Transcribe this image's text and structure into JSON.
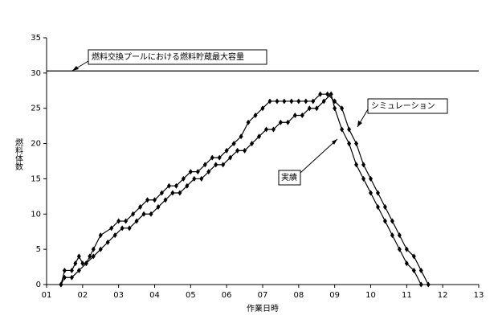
{
  "chart_data": {
    "type": "line",
    "x_label": "作業日時",
    "y_label": "燃料体数",
    "xlim": [
      1,
      13
    ],
    "xticks": [
      {
        "value": 1,
        "label": "01"
      },
      {
        "value": 2,
        "label": "02"
      },
      {
        "value": 3,
        "label": "03"
      },
      {
        "value": 4,
        "label": "04"
      },
      {
        "value": 5,
        "label": "05"
      },
      {
        "value": 6,
        "label": "06"
      },
      {
        "value": 7,
        "label": "07"
      },
      {
        "value": 8,
        "label": "08"
      },
      {
        "value": 9,
        "label": "09"
      },
      {
        "value": 10,
        "label": "10"
      },
      {
        "value": 11,
        "label": "11"
      },
      {
        "value": 12,
        "label": "12"
      },
      {
        "value": 13,
        "label": "13"
      }
    ],
    "ylim": [
      0,
      35
    ],
    "yticks": [
      0,
      5,
      10,
      15,
      20,
      25,
      30,
      35
    ],
    "reference_line": {
      "value": 30.3,
      "label": "燃料交換プールにおける燃料貯蔵最大容量",
      "color": "#000000"
    },
    "series": [
      {
        "name": "シミュレーション",
        "color": "#000000",
        "x": [
          1.4,
          1.5,
          1.7,
          1.8,
          1.9,
          2.0,
          2.1,
          2.2,
          2.3,
          2.5,
          2.8,
          3.0,
          3.2,
          3.4,
          3.6,
          3.8,
          4.0,
          4.2,
          4.4,
          4.6,
          4.8,
          5.0,
          5.2,
          5.4,
          5.6,
          5.8,
          6.0,
          6.2,
          6.4,
          6.6,
          6.8,
          7.0,
          7.2,
          7.4,
          7.6,
          7.8,
          8.0,
          8.2,
          8.4,
          8.6,
          8.8,
          9.0,
          9.2,
          9.4,
          9.6,
          9.8,
          10.0,
          10.2,
          10.4,
          10.6,
          10.8,
          11.0,
          11.2,
          11.4,
          11.6
        ],
        "values": [
          0,
          2,
          2,
          3,
          4,
          3,
          3,
          4,
          5,
          7,
          8,
          9,
          9,
          10,
          11,
          12,
          12,
          13,
          14,
          14,
          15,
          16,
          16,
          17,
          18,
          18,
          19,
          20,
          21,
          23,
          24,
          25,
          26,
          26,
          26,
          26,
          26,
          26,
          26,
          27,
          27,
          26,
          25,
          22,
          20,
          17,
          15,
          13,
          11,
          9,
          7,
          5,
          4,
          2,
          0
        ]
      },
      {
        "name": "実績",
        "color": "#000000",
        "x": [
          1.4,
          1.5,
          1.7,
          1.9,
          2.1,
          2.3,
          2.5,
          2.7,
          2.9,
          3.1,
          3.3,
          3.5,
          3.7,
          3.9,
          4.1,
          4.3,
          4.5,
          4.7,
          4.9,
          5.1,
          5.3,
          5.5,
          5.7,
          5.9,
          6.1,
          6.3,
          6.5,
          6.7,
          6.9,
          7.1,
          7.3,
          7.5,
          7.7,
          7.9,
          8.1,
          8.3,
          8.5,
          8.7,
          8.9,
          9.0,
          9.2,
          9.4,
          9.6,
          9.8,
          10.0,
          10.2,
          10.4,
          10.6,
          10.8,
          11.0,
          11.2,
          11.4
        ],
        "values": [
          0,
          1,
          1,
          2,
          3,
          4,
          5,
          6,
          7,
          8,
          8,
          9,
          10,
          10,
          11,
          12,
          13,
          13,
          14,
          15,
          15,
          16,
          17,
          17,
          18,
          19,
          19,
          20,
          21,
          22,
          22,
          23,
          23,
          24,
          24,
          25,
          25,
          26,
          27,
          25,
          22,
          20,
          17,
          15,
          13,
          11,
          9,
          7,
          5,
          3,
          2,
          0
        ]
      }
    ]
  }
}
